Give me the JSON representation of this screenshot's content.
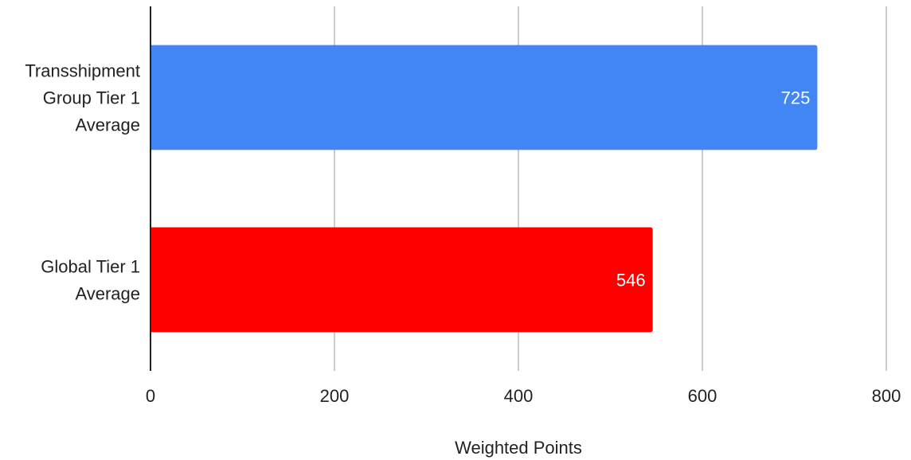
{
  "chart_data": {
    "type": "bar",
    "orientation": "horizontal",
    "categories": [
      [
        "Transshipment",
        "Group Tier 1",
        "Average"
      ],
      [
        "Global Tier 1",
        "Average"
      ]
    ],
    "values": [
      725,
      546
    ],
    "data_labels": [
      "725",
      "546"
    ],
    "colors": [
      "#4285f4",
      "#ff0000"
    ],
    "xlabel": "Weighted Points",
    "xlim": [
      0,
      800
    ],
    "xticks": [
      0,
      200,
      400,
      600,
      800
    ],
    "grid": true,
    "legend": "none"
  }
}
